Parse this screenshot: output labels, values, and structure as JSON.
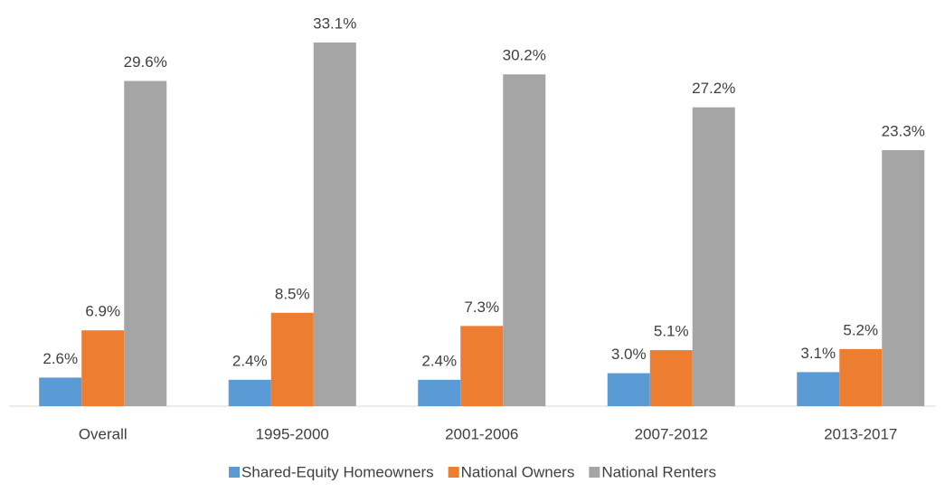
{
  "chart_data": {
    "type": "bar",
    "categories": [
      "Overall",
      "1995-2000",
      "2001-2006",
      "2007-2012",
      "2013-2017"
    ],
    "series": [
      {
        "name": "Shared-Equity Homeowners",
        "color": "#5b9bd5",
        "values": [
          2.6,
          2.4,
          2.4,
          3.0,
          3.1
        ],
        "value_labels": [
          "2.6%",
          "2.4%",
          "2.4%",
          "3.0%",
          "3.1%"
        ]
      },
      {
        "name": "National Owners",
        "color": "#ed7d31",
        "values": [
          6.9,
          8.5,
          7.3,
          5.1,
          5.2
        ],
        "value_labels": [
          "6.9%",
          "8.5%",
          "7.3%",
          "5.1%",
          "5.2%"
        ]
      },
      {
        "name": "National Renters",
        "color": "#a5a5a5",
        "values": [
          29.6,
          33.1,
          30.2,
          27.2,
          23.3
        ],
        "value_labels": [
          "29.6%",
          "33.1%",
          "30.2%",
          "27.2%",
          "23.3%"
        ]
      }
    ],
    "legend": "bottom"
  }
}
